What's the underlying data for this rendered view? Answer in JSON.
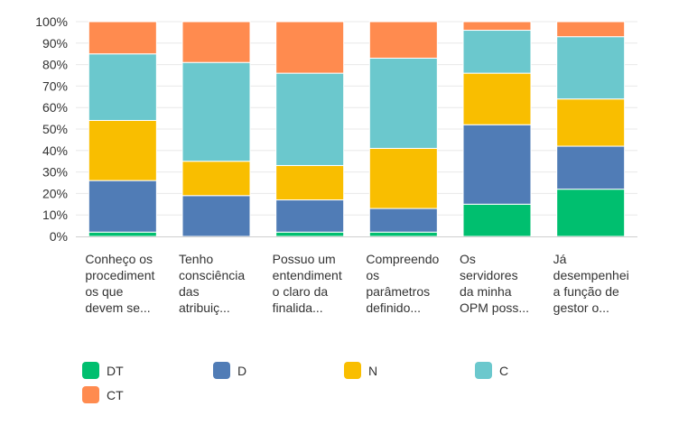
{
  "chart_data": {
    "type": "bar",
    "stacked": true,
    "percent": true,
    "title": "",
    "xlabel": "",
    "ylabel": "",
    "ylim": [
      0,
      100
    ],
    "y_ticks": [
      "0%",
      "10%",
      "20%",
      "30%",
      "40%",
      "50%",
      "60%",
      "70%",
      "80%",
      "90%",
      "100%"
    ],
    "categories": [
      "Conheço os procedimentos que devem se...",
      "Tenho consciência das atribuiç...",
      "Possuo um entendimento claro da finalida...",
      "Compreendo os parâmetros definido...",
      "Os servidores da minha OPM poss...",
      "Já desempenhei a função de gestor o..."
    ],
    "category_lines": [
      [
        "Conheço os",
        "procediment",
        "os que",
        "devem se..."
      ],
      [
        "Tenho",
        "consciência",
        "das",
        "atribuiç..."
      ],
      [
        "Possuo um",
        "entendiment",
        "o claro da",
        "finalida..."
      ],
      [
        "Compreendo",
        "os",
        "parâmetros",
        "definido..."
      ],
      [
        "Os",
        "servidores",
        "da minha",
        "OPM poss..."
      ],
      [
        "Já",
        "desempenhei",
        "a função de",
        "gestor o..."
      ]
    ],
    "series": [
      {
        "name": "DT",
        "color": "#00bf6f",
        "values": [
          2,
          0,
          2,
          2,
          15,
          22
        ]
      },
      {
        "name": "D",
        "color": "#507cb6",
        "values": [
          24,
          19,
          15,
          11,
          37,
          20
        ]
      },
      {
        "name": "N",
        "color": "#f9be00",
        "values": [
          28,
          16,
          16,
          28,
          24,
          22
        ]
      },
      {
        "name": "C",
        "color": "#6bc8cd",
        "values": [
          31,
          46,
          43,
          42,
          20,
          29
        ]
      },
      {
        "name": "CT",
        "color": "#ff8b4f",
        "values": [
          15,
          19,
          24,
          17,
          4,
          7
        ]
      }
    ],
    "legend": "bottom",
    "grid": true
  }
}
